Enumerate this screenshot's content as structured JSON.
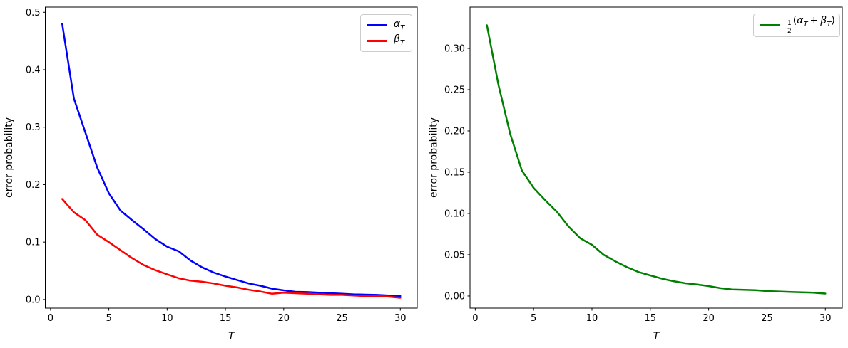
{
  "figure": {
    "background": "#ffffff",
    "xlabel": "T",
    "ylabel": "error probability"
  },
  "chart_data": [
    {
      "name": "left",
      "type": "line",
      "title": "",
      "xlabel": "T",
      "ylabel": "error probability",
      "grid": false,
      "legend_position": "upper right",
      "x": [
        1,
        2,
        3,
        4,
        5,
        6,
        7,
        8,
        9,
        10,
        11,
        12,
        13,
        14,
        15,
        16,
        17,
        18,
        19,
        20,
        21,
        22,
        23,
        24,
        25,
        26,
        27,
        28,
        29,
        30
      ],
      "series": [
        {
          "id": "alpha",
          "name": "α_T",
          "color": "#0000ff",
          "values": [
            0.48,
            0.35,
            0.29,
            0.23,
            0.185,
            0.155,
            0.138,
            0.122,
            0.105,
            0.092,
            0.084,
            0.068,
            0.056,
            0.047,
            0.04,
            0.034,
            0.028,
            0.024,
            0.019,
            0.016,
            0.0135,
            0.013,
            0.012,
            0.011,
            0.01,
            0.009,
            0.0085,
            0.008,
            0.007,
            0.006
          ]
        },
        {
          "id": "beta",
          "name": "β_T",
          "color": "#ff0000",
          "values": [
            0.175,
            0.152,
            0.138,
            0.113,
            0.1,
            0.086,
            0.072,
            0.06,
            0.051,
            0.044,
            0.037,
            0.033,
            0.031,
            0.028,
            0.024,
            0.021,
            0.017,
            0.014,
            0.01,
            0.012,
            0.011,
            0.01,
            0.009,
            0.008,
            0.008,
            0.007,
            0.006,
            0.006,
            0.005,
            0.003
          ]
        }
      ],
      "xticks": [
        0,
        5,
        10,
        15,
        20,
        25,
        30
      ],
      "xtick_labels": [
        "0",
        "5",
        "10",
        "15",
        "20",
        "25",
        "30"
      ],
      "yticks": [
        0.0,
        0.1,
        0.2,
        0.3,
        0.4,
        0.5
      ],
      "ytick_labels": [
        "0.0",
        "0.1",
        "0.2",
        "0.3",
        "0.4",
        "0.5"
      ],
      "xlim": [
        -0.45,
        31.45
      ],
      "ylim": [
        -0.015,
        0.509
      ]
    },
    {
      "name": "right",
      "type": "line",
      "title": "",
      "xlabel": "T",
      "ylabel": "error probability",
      "grid": false,
      "legend_position": "upper right",
      "x": [
        1,
        2,
        3,
        4,
        5,
        6,
        7,
        8,
        9,
        10,
        11,
        12,
        13,
        14,
        15,
        16,
        17,
        18,
        19,
        20,
        21,
        22,
        23,
        24,
        25,
        26,
        27,
        28,
        29,
        30
      ],
      "series": [
        {
          "id": "mean",
          "name": "(1/2)(α_T + β_T)",
          "color": "#008000",
          "values": [
            0.328,
            0.255,
            0.196,
            0.152,
            0.131,
            0.116,
            0.102,
            0.084,
            0.07,
            0.062,
            0.05,
            0.042,
            0.035,
            0.029,
            0.025,
            0.021,
            0.018,
            0.0155,
            0.014,
            0.012,
            0.0095,
            0.008,
            0.0075,
            0.007,
            0.006,
            0.0055,
            0.005,
            0.0045,
            0.004,
            0.003
          ]
        }
      ],
      "xticks": [
        0,
        5,
        10,
        15,
        20,
        25,
        30
      ],
      "xtick_labels": [
        "0",
        "5",
        "10",
        "15",
        "20",
        "25",
        "30"
      ],
      "yticks": [
        0.0,
        0.05,
        0.1,
        0.15,
        0.2,
        0.25,
        0.3
      ],
      "ytick_labels": [
        "0.00",
        "0.05",
        "0.10",
        "0.15",
        "0.20",
        "0.25",
        "0.30"
      ],
      "xlim": [
        -0.45,
        31.45
      ],
      "ylim": [
        -0.0147,
        0.35
      ]
    }
  ],
  "legends": {
    "left": {
      "entries": [
        {
          "sym": "α",
          "sub": "T"
        },
        {
          "sym": "β",
          "sub": "T"
        }
      ]
    },
    "right": {
      "entry": {
        "frac_num": "1",
        "frac_den": "2",
        "open": "(",
        "sym1": "α",
        "sub1": "T",
        "plus": "+",
        "sym2": "β",
        "sub2": "T",
        "close": ")"
      }
    }
  }
}
